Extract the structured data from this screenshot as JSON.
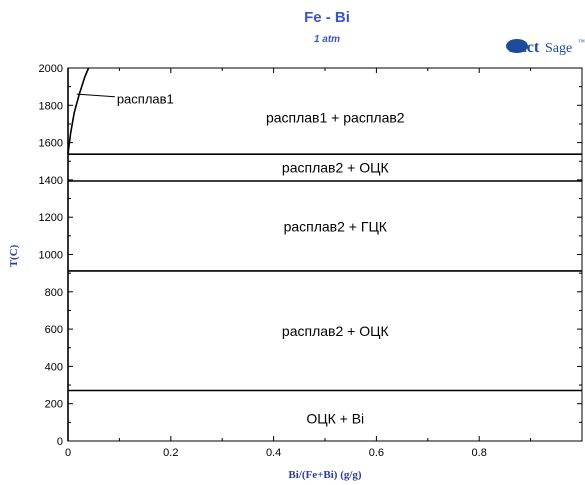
{
  "chart_data": {
    "type": "line",
    "title": "Fe - Bi",
    "subtitle": "1 atm",
    "xlabel": "Bi/(Fe+Bi) (g/g)",
    "ylabel": "T(C)",
    "xlim": [
      0,
      1
    ],
    "ylim": [
      0,
      2000
    ],
    "x_ticks": [
      0,
      0.2,
      0.4,
      0.6,
      0.8
    ],
    "x_tick_labels": [
      "0",
      "0.2",
      "0.4",
      "0.6",
      "0.8"
    ],
    "y_ticks": [
      0,
      200,
      400,
      600,
      800,
      1000,
      1200,
      1400,
      1600,
      1800,
      2000
    ],
    "y_tick_labels": [
      "0",
      "200",
      "400",
      "600",
      "800",
      "1000",
      "1200",
      "1400",
      "1600",
      "1800",
      "2000"
    ],
    "grid": false,
    "series": [
      {
        "x": [
          0,
          0.005,
          0.012,
          0.022,
          0.033,
          0.04
        ],
        "y": [
          1540,
          1650,
          1760,
          1860,
          1955,
          2000
        ]
      },
      {
        "x": [
          0,
          1
        ],
        "y": [
          1538,
          1538
        ]
      },
      {
        "x": [
          0,
          1
        ],
        "y": [
          1394,
          1394
        ]
      },
      {
        "x": [
          0,
          1
        ],
        "y": [
          912,
          912
        ]
      },
      {
        "x": [
          0,
          1
        ],
        "y": [
          271,
          271
        ]
      },
      {
        "x": [
          0,
          0
        ],
        "y": [
          0,
          2000
        ]
      }
    ],
    "annotations": [
      {
        "text": "расплав1",
        "x": 0.095,
        "y": 1830,
        "arrow_to": [
          0.017,
          1860
        ]
      },
      {
        "text": "расплав1 + расплав2",
        "x": 0.52,
        "y": 1735
      },
      {
        "text": "расплав2 + ОЦК",
        "x": 0.52,
        "y": 1466
      },
      {
        "text": "расплав2 + ГЦК",
        "x": 0.52,
        "y": 1150
      },
      {
        "text": "расплав2 + ОЦК",
        "x": 0.52,
        "y": 590
      },
      {
        "text": "ОЦК + Bi",
        "x": 0.52,
        "y": 120
      }
    ]
  },
  "logo": {
    "part1": "Fact",
    "part2": "Sage",
    "mark": "™"
  },
  "colors": {
    "title": "#3a55c8",
    "axis_label": "#2d3c9f",
    "logo": "#1e4a9c",
    "lines": "#000000"
  }
}
